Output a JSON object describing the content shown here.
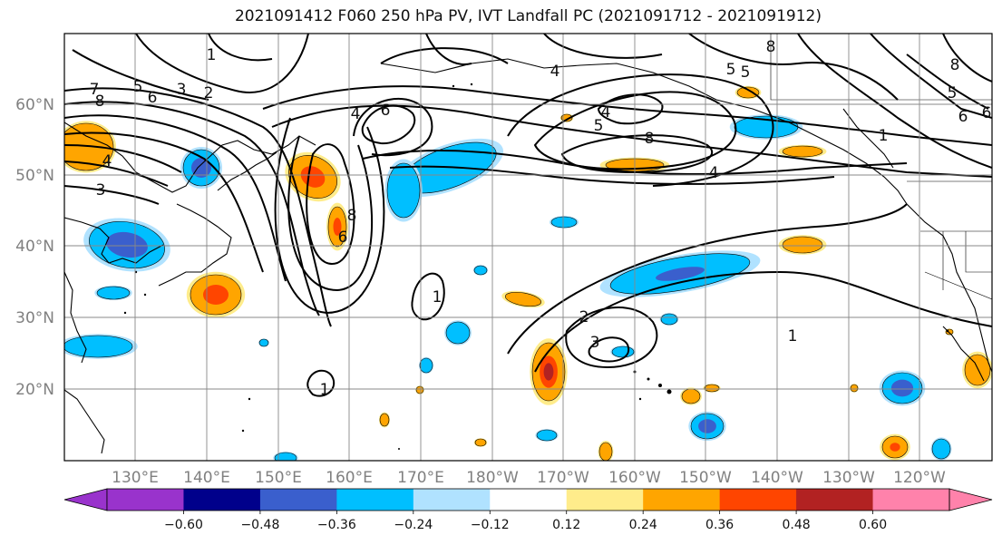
{
  "title": "2021091412 F060 250 hPa PV, IVT Landfall PC (2021091712 - 2021091912)",
  "lat_labels": [
    "60°N",
    "50°N",
    "40°N",
    "30°N",
    "20°N"
  ],
  "lon_labels": [
    "130°E",
    "140°E",
    "150°E",
    "160°E",
    "170°E",
    "180°W",
    "170°W",
    "160°W",
    "150°W",
    "140°W",
    "130°W",
    "120°W"
  ],
  "colorbar": {
    "levels": [
      "−0.60",
      "−0.48",
      "−0.36",
      "−0.24",
      "−0.12",
      "0.12",
      "0.24",
      "0.36",
      "0.48",
      "0.60"
    ],
    "colors": [
      "#9933cc",
      "#00008b",
      "#3a5fcd",
      "#00bfff",
      "#b0e2ff",
      "#ffffff",
      "#ffec8b",
      "#ffa500",
      "#ff4500",
      "#b22222",
      "#ff82ab"
    ]
  },
  "contour_labels": [
    "1",
    "2",
    "3",
    "4",
    "5",
    "6",
    "7",
    "8"
  ]
}
